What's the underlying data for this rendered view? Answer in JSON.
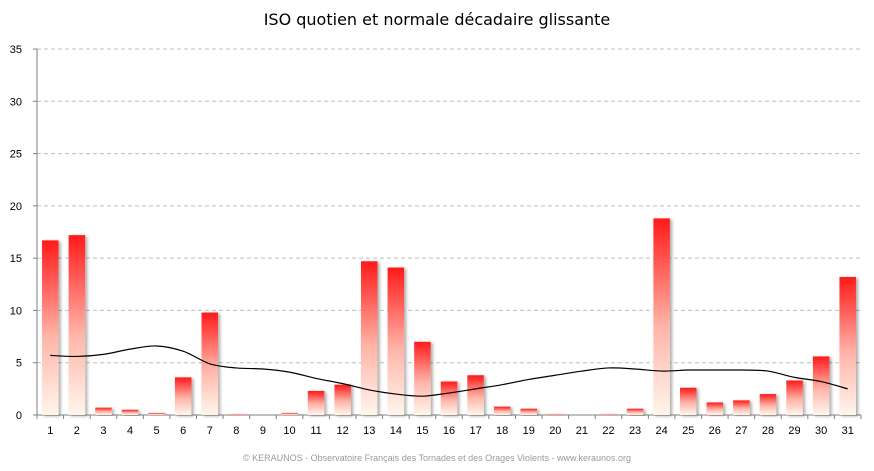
{
  "chart_data": {
    "type": "bar",
    "title": "ISO quotien et normale décadaire glissante",
    "xlabel": "",
    "ylabel": "",
    "ylim": [
      0,
      35
    ],
    "yticks": [
      0,
      5,
      10,
      15,
      20,
      25,
      30,
      35
    ],
    "grid": true,
    "legend": "none",
    "categories": [
      "1",
      "2",
      "3",
      "4",
      "5",
      "6",
      "7",
      "8",
      "9",
      "10",
      "11",
      "12",
      "13",
      "14",
      "15",
      "16",
      "17",
      "18",
      "19",
      "20",
      "21",
      "22",
      "23",
      "24",
      "25",
      "26",
      "27",
      "28",
      "29",
      "30",
      "31"
    ],
    "series": [
      {
        "kind": "bar",
        "values": [
          16.7,
          17.2,
          0.7,
          0.5,
          0.2,
          3.6,
          9.8,
          0.1,
          0.0,
          0.2,
          2.3,
          2.9,
          14.7,
          14.1,
          7.0,
          3.2,
          3.8,
          0.8,
          0.6,
          0.1,
          0.0,
          0.1,
          0.6,
          18.8,
          2.6,
          1.2,
          1.4,
          2.0,
          3.3,
          5.6,
          13.2
        ]
      },
      {
        "kind": "line",
        "values": [
          5.7,
          5.6,
          5.8,
          6.3,
          6.6,
          6.1,
          4.9,
          4.5,
          4.4,
          4.1,
          3.5,
          3.0,
          2.4,
          2.0,
          1.8,
          2.1,
          2.5,
          2.9,
          3.4,
          3.8,
          4.2,
          4.5,
          4.4,
          4.2,
          4.3,
          4.3,
          4.3,
          4.2,
          3.6,
          3.2,
          2.5
        ]
      }
    ],
    "colors": {
      "bar_top": "#ff1a1a",
      "bar_bottom": "#fff6ec",
      "line": "#000000",
      "grid": "#bfbfbf",
      "axis": "#808080"
    }
  },
  "footer": {
    "credit": "© KERAUNOS - Observatoire Français des Tornades et des Orages Violents - www.keraunos.org"
  }
}
